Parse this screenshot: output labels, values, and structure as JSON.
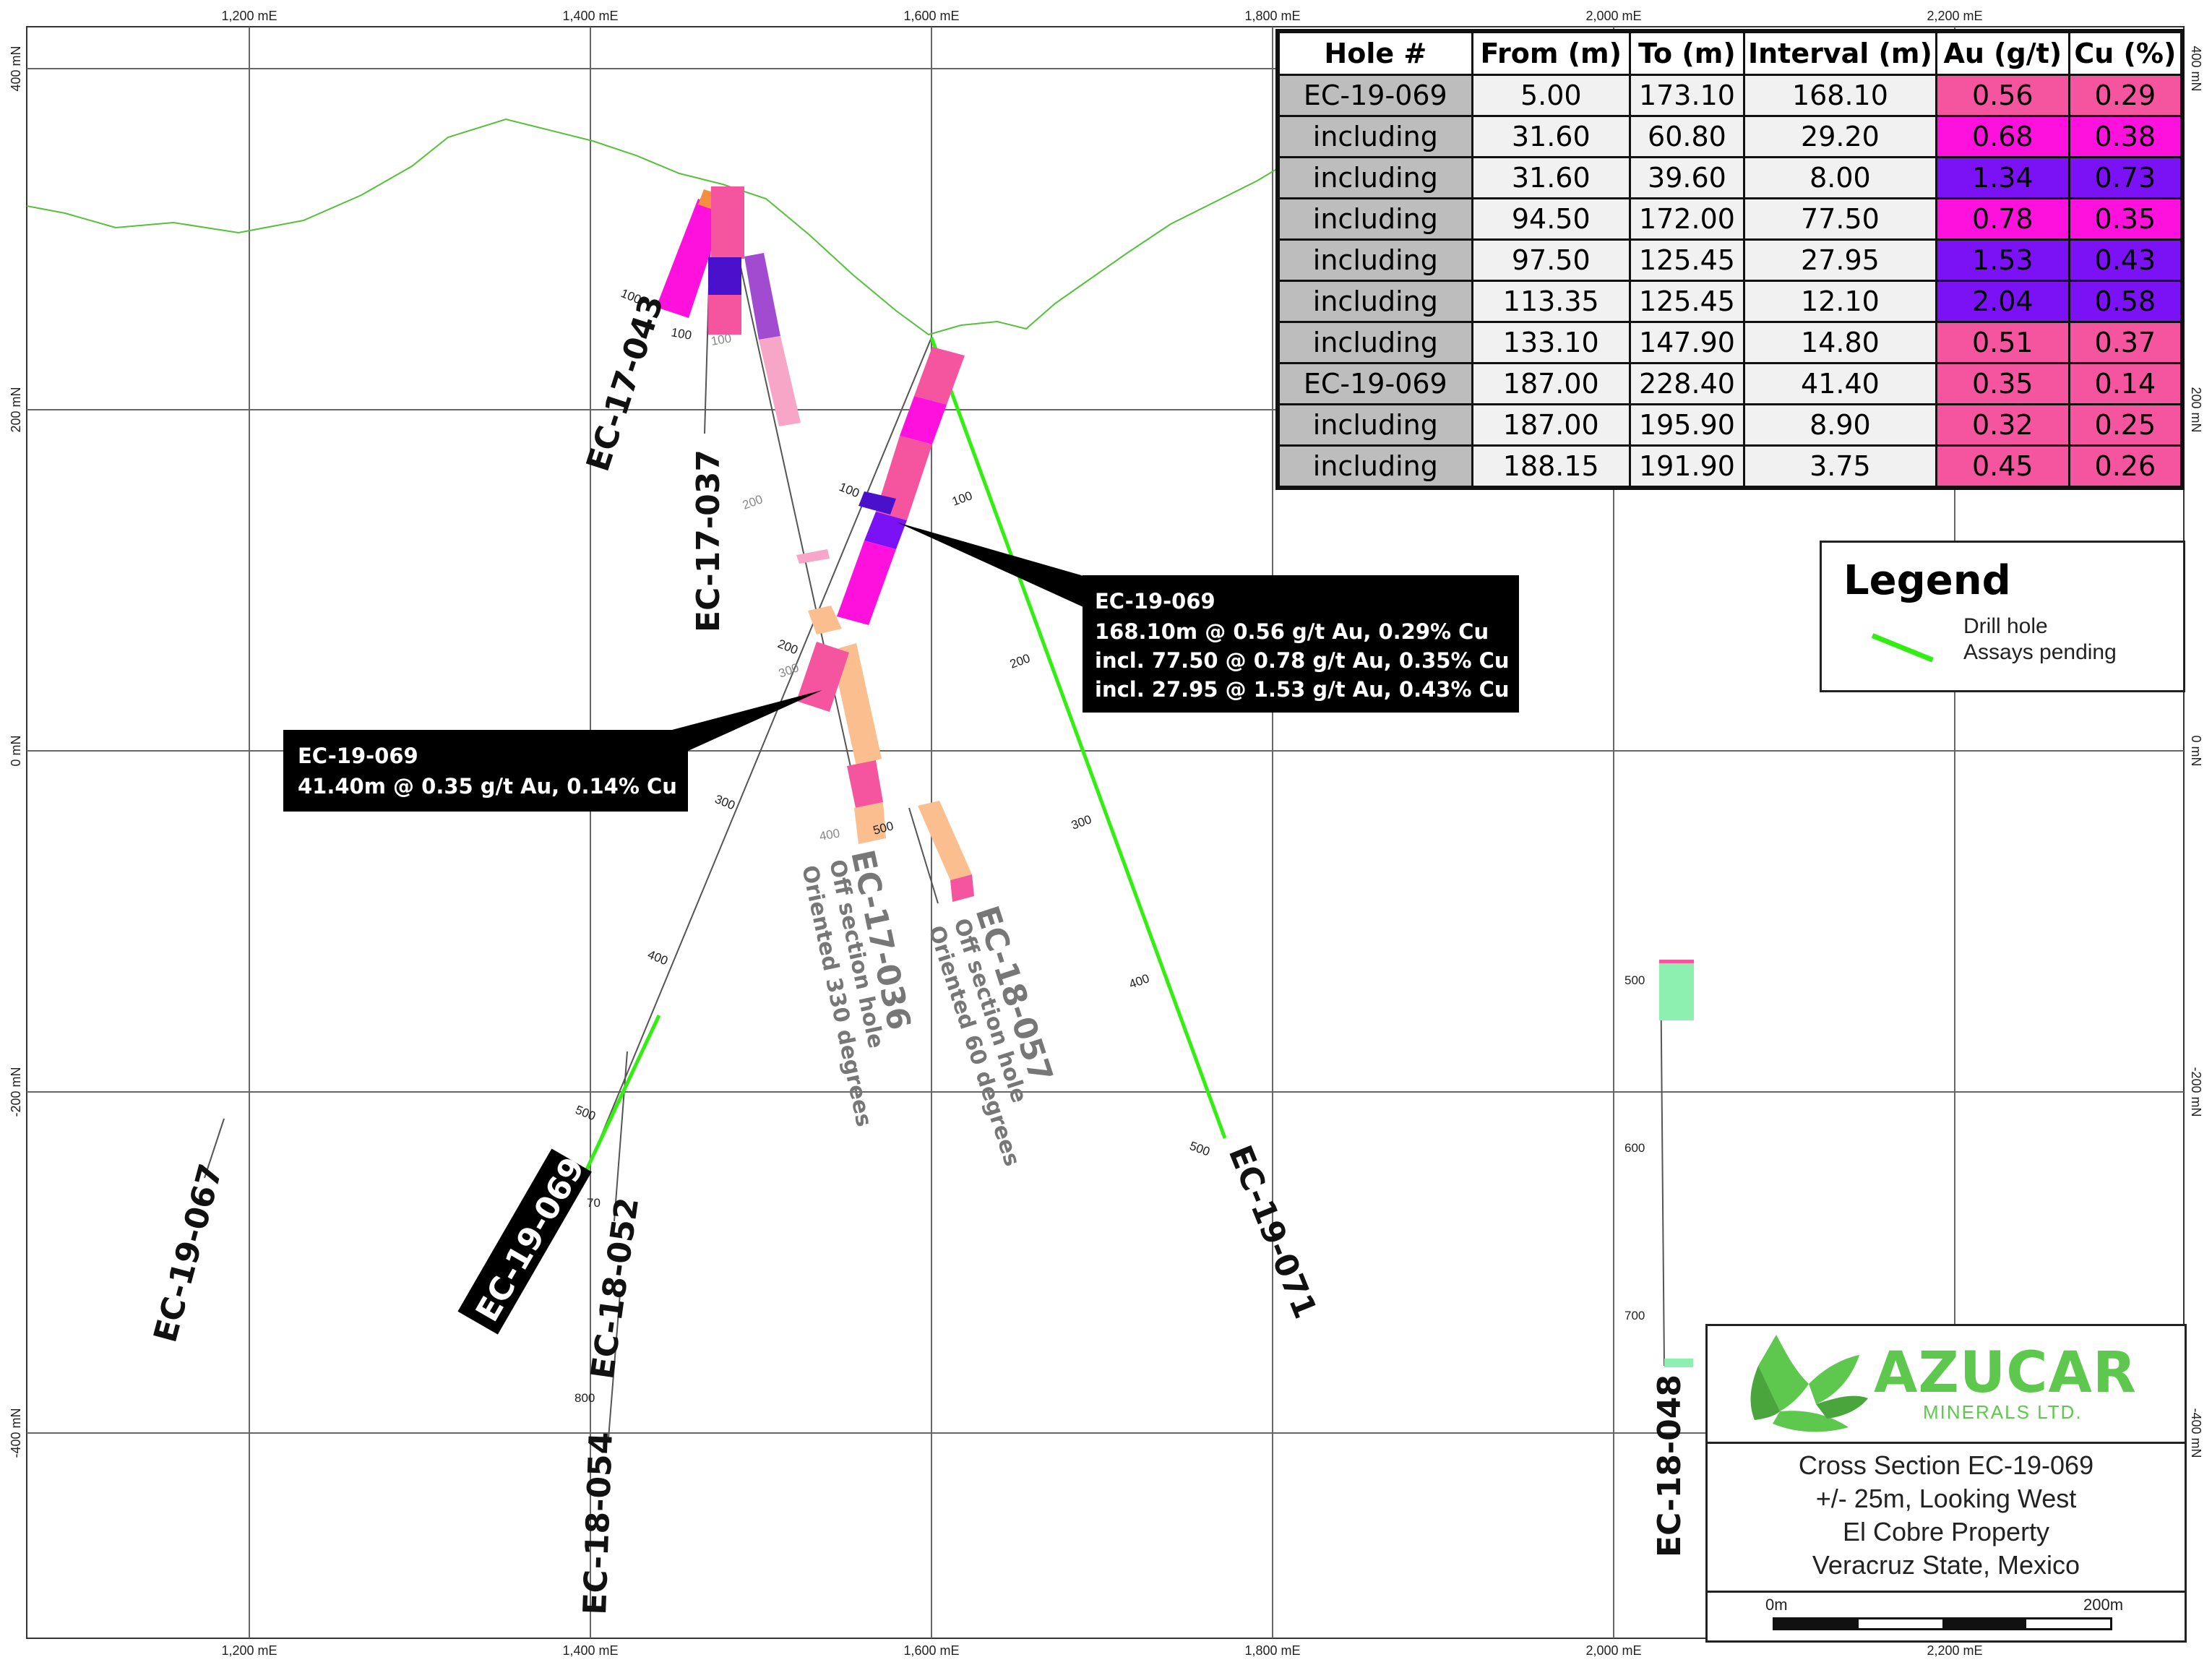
{
  "axes": {
    "easting_ticks": [
      "1,200 mE",
      "1,400 mE",
      "1,600 mE",
      "1,800 mE",
      "2,000 mE",
      "2,200 mE"
    ],
    "northing_ticks": [
      "400 mN",
      "200 mN",
      "0 mN",
      "-200 mN",
      "-400 mN"
    ]
  },
  "table": {
    "headers": [
      "Hole #",
      "From (m)",
      "To (m)",
      "Interval (m)",
      "Au (g/t)",
      "Cu (%)"
    ],
    "rows": [
      {
        "hole": "EC-19-069",
        "from": "5.00",
        "to": "173.10",
        "interval": "168.10",
        "au": "0.56",
        "cu": "0.29",
        "au_color": "#f5559f",
        "cu_color": "#f5559f"
      },
      {
        "hole": "including",
        "from": "31.60",
        "to": "60.80",
        "interval": "29.20",
        "au": "0.68",
        "cu": "0.38",
        "au_color": "#ff11dd",
        "cu_color": "#ff11dd"
      },
      {
        "hole": "including",
        "from": "31.60",
        "to": "39.60",
        "interval": "8.00",
        "au": "1.34",
        "cu": "0.73",
        "au_color": "#7a12f5",
        "cu_color": "#7a12f5"
      },
      {
        "hole": "including",
        "from": "94.50",
        "to": "172.00",
        "interval": "77.50",
        "au": "0.78",
        "cu": "0.35",
        "au_color": "#ff11dd",
        "cu_color": "#ff11dd"
      },
      {
        "hole": "including",
        "from": "97.50",
        "to": "125.45",
        "interval": "27.95",
        "au": "1.53",
        "cu": "0.43",
        "au_color": "#7a12f5",
        "cu_color": "#7a12f5"
      },
      {
        "hole": "including",
        "from": "113.35",
        "to": "125.45",
        "interval": "12.10",
        "au": "2.04",
        "cu": "0.58",
        "au_color": "#7a12f5",
        "cu_color": "#7a12f5"
      },
      {
        "hole": "including",
        "from": "133.10",
        "to": "147.90",
        "interval": "14.80",
        "au": "0.51",
        "cu": "0.37",
        "au_color": "#f5559f",
        "cu_color": "#f5559f"
      },
      {
        "hole": "EC-19-069",
        "from": "187.00",
        "to": "228.40",
        "interval": "41.40",
        "au": "0.35",
        "cu": "0.14",
        "au_color": "#f5559f",
        "cu_color": "#f5559f"
      },
      {
        "hole": "including",
        "from": "187.00",
        "to": "195.90",
        "interval": "8.90",
        "au": "0.32",
        "cu": "0.25",
        "au_color": "#f5559f",
        "cu_color": "#f5559f"
      },
      {
        "hole": "including",
        "from": "188.15",
        "to": "191.90",
        "interval": "3.75",
        "au": "0.45",
        "cu": "0.26",
        "au_color": "#f5559f",
        "cu_color": "#f5559f"
      }
    ]
  },
  "legend": {
    "title": "Legend",
    "item_line1": "Drill hole",
    "item_line2": "Assays pending",
    "color": "#33ee11"
  },
  "callouts": {
    "upper": {
      "line1": "EC-19-069",
      "line2": "168.10m @ 0.56 g/t Au, 0.29% Cu",
      "line3": "incl. 77.50 @ 0.78 g/t Au, 0.35% Cu",
      "line4": "incl. 27.95 @ 1.53 g/t Au, 0.43% Cu"
    },
    "lower": {
      "line1": "EC-19-069",
      "line2": "41.40m @ 0.35 g/t Au, 0.14% Cu"
    }
  },
  "holes": {
    "ec17043": "EC-17-043",
    "ec17037": "EC-17-037",
    "ec17036": "EC-17-036",
    "ec18057": "EC-18-057",
    "ec19071": "EC-19-071",
    "ec19069": "EC-19-069",
    "ec18052": "EC-18-052",
    "ec18054": "EC-18-054",
    "ec19067": "EC-19-067",
    "ec18048": "EC-18-048"
  },
  "notes": {
    "ec17036_line1": "Off section hole",
    "ec17036_line2": "Oriented 330 degrees",
    "ec18057_line1": "Off section hole",
    "ec18057_line2": "Oriented 60 degrees"
  },
  "depths": {
    "d100": "100",
    "d200": "200",
    "d300": "300",
    "d400": "400",
    "d500": "500",
    "d600": "600",
    "d700": "700",
    "d800": "800",
    "d70": "70"
  },
  "title_block": {
    "company": "AZUCAR",
    "company_sub": "MINERALS LTD.",
    "line1": "Cross Section EC-19-069",
    "line2": "+/- 25m, Looking West",
    "line3": "El Cobre Property",
    "line4": "Veracruz State, Mexico",
    "scale_start": "0m",
    "scale_end": "200m"
  },
  "colors": {
    "grid": "#666666",
    "topography": "#55c13a",
    "assays_pending": "#33ee11",
    "pink": "#f5559f",
    "magenta": "#ff11dd",
    "purple": "#7a12f5",
    "violet": "#4a11cc",
    "light_pink": "#f7a6c8",
    "peach": "#fbbf8f",
    "mint": "#8ef0b0",
    "orange": "#f58f40"
  }
}
